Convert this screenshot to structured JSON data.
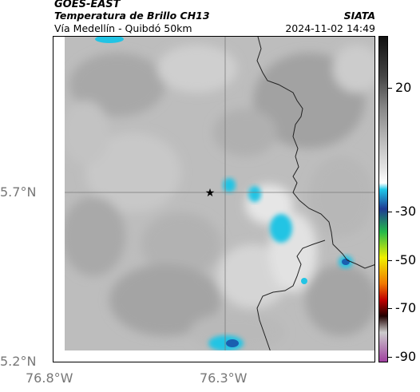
{
  "header": {
    "satellite": "GOES-EAST",
    "product": "Temperatura de Brillo CH13",
    "route": "Vía Medellín - Quibdó 50km",
    "source": "SIATA",
    "datetime": "2024-11-02 14:49"
  },
  "map": {
    "lat_labels": [
      "5.7°N",
      "5.2°N"
    ],
    "lon_labels": [
      "76.8°W",
      "76.3°W"
    ],
    "marker": "star-icon",
    "colors": {
      "cloud_cyan": "#22c4e4",
      "cloud_blue": "#1a5fb0",
      "gray_base": "#bdbdbd",
      "boundary": "#222222"
    }
  },
  "colorbar": {
    "labels": [
      "20",
      "-30",
      "-50",
      "-70",
      "-90"
    ],
    "colors": [
      "#111111",
      "#444444",
      "#888888",
      "#bbbbbb",
      "#e6e6e6",
      "#ffffff",
      "#20c8e8",
      "#1f3a93",
      "#23b84a",
      "#f0f000",
      "#f07800",
      "#c00000",
      "#200000",
      "#cccccc",
      "#a040a0"
    ]
  }
}
